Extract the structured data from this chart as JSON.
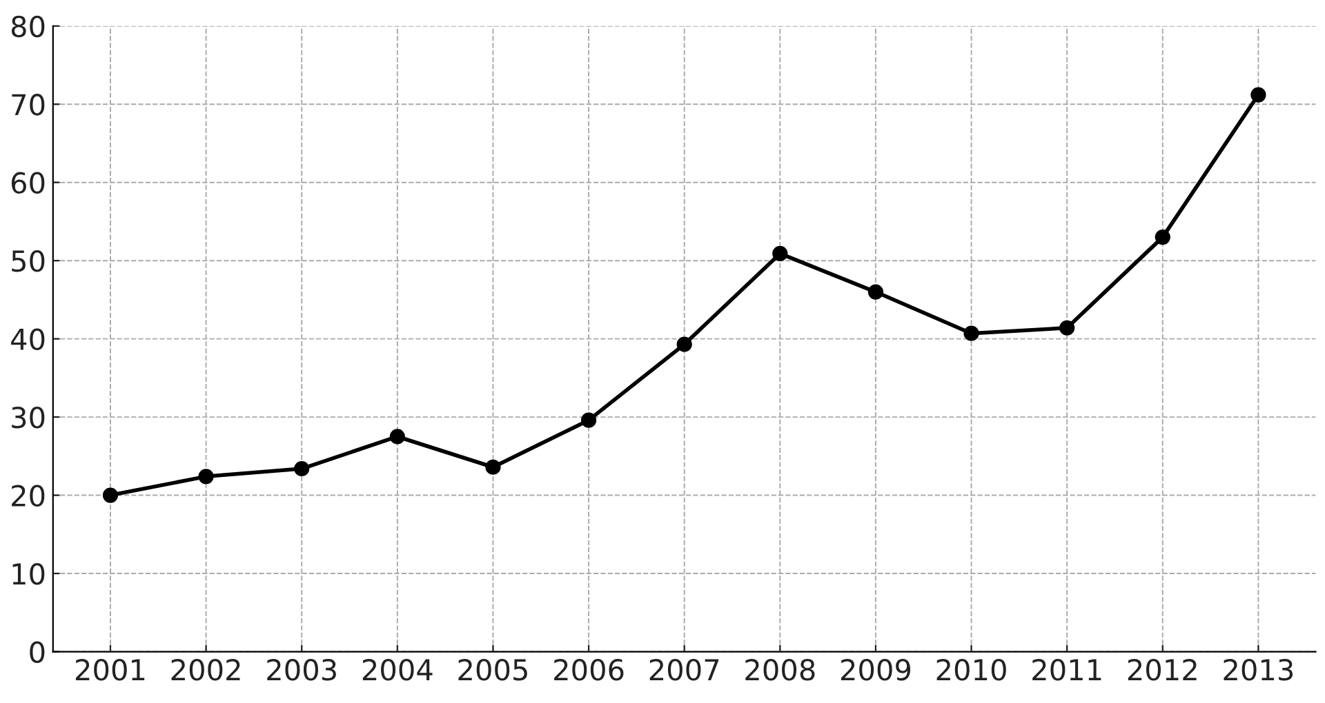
{
  "chart_data": {
    "type": "line",
    "x": [
      2001,
      2002,
      2003,
      2004,
      2005,
      2006,
      2007,
      2008,
      2009,
      2010,
      2011,
      2012,
      2013
    ],
    "series": [
      {
        "color": "#000000",
        "values": [
          20,
          22.4,
          23.4,
          27.5,
          23.6,
          29.6,
          39.3,
          50.9,
          46.0,
          40.7,
          41.4,
          53.0,
          71.2
        ]
      }
    ],
    "xlim": [
      2000.4,
      2013.6
    ],
    "xticks": [
      2001,
      2002,
      2003,
      2004,
      2005,
      2006,
      2007,
      2008,
      2009,
      2010,
      2011,
      2012,
      2013
    ],
    "ylim": [
      0,
      80
    ],
    "yticks": [
      0,
      10,
      20,
      30,
      40,
      50,
      60,
      70,
      80
    ],
    "grid": true,
    "marker": "circle",
    "line_style": "solid",
    "legend": false
  }
}
